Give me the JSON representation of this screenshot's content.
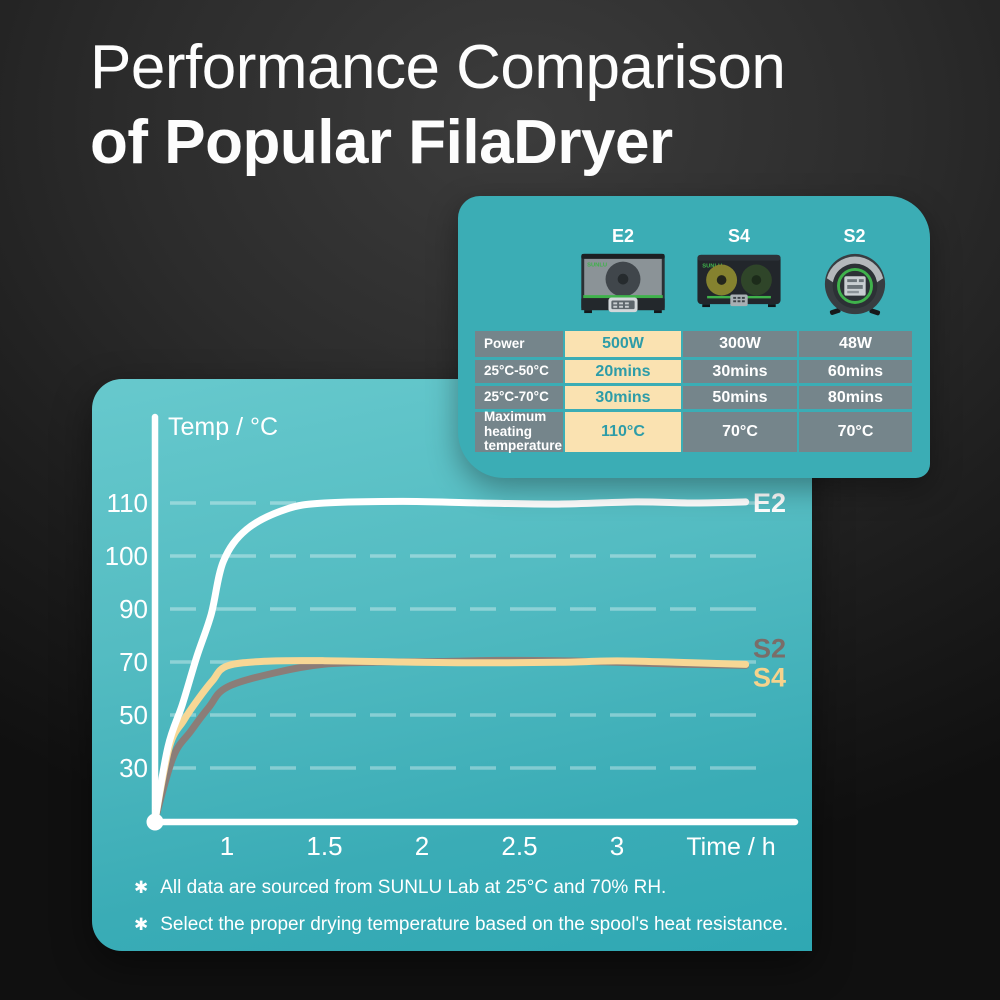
{
  "header": {
    "title_line1": "Performance Comparison",
    "title_line2": "of Popular FilaDryer"
  },
  "brand": "SUNLU",
  "comparison": {
    "products": [
      {
        "name": "E2"
      },
      {
        "name": "S4"
      },
      {
        "name": "S2"
      }
    ],
    "highlight_column": "E2",
    "rows": [
      {
        "label": "Power",
        "values": [
          "500W",
          "300W",
          "48W"
        ]
      },
      {
        "label": "25°C-50°C",
        "values": [
          "20mins",
          "30mins",
          "60mins"
        ]
      },
      {
        "label": "25°C-70°C",
        "values": [
          "30mins",
          "50mins",
          "80mins"
        ]
      },
      {
        "label": "Maximum heating temperature",
        "values": [
          "110°C",
          "70°C",
          "70°C"
        ]
      }
    ]
  },
  "chart_data": {
    "type": "line",
    "ylabel": "Temp / °C",
    "xlabel": "Time / h",
    "y_ticks": [
      110,
      100,
      90,
      70,
      50,
      30
    ],
    "x_ticks": [
      "1",
      "1.5",
      "2",
      "2.5",
      "3"
    ],
    "grid": "dashed-horizontal",
    "legend_position": "line-end-labels",
    "axis_color": "#ffffff",
    "grid_color": "rgba(255,255,255,0.35)",
    "series": [
      {
        "name": "E2",
        "color": "#ffffff",
        "label_color": "#ffffff",
        "points": [
          [
            0,
            25
          ],
          [
            0.18,
            38
          ],
          [
            0.38,
            54
          ],
          [
            0.58,
            72
          ],
          [
            0.78,
            88
          ],
          [
            0.95,
            99
          ],
          [
            1.1,
            105
          ],
          [
            1.3,
            108.8
          ],
          [
            1.5,
            110
          ],
          [
            1.9,
            110.3
          ],
          [
            2.3,
            110
          ],
          [
            2.7,
            109.8
          ],
          [
            3.1,
            110.2
          ],
          [
            3.4,
            110
          ],
          [
            3.66,
            110.2
          ]
        ]
      },
      {
        "name": "S4",
        "color": "#f7d795",
        "label_color": "#f6d38c",
        "points": [
          [
            0,
            25
          ],
          [
            0.2,
            38
          ],
          [
            0.4,
            48
          ],
          [
            0.6,
            56
          ],
          [
            0.8,
            63
          ],
          [
            1.0,
            68.5
          ],
          [
            1.2,
            70.3
          ],
          [
            1.5,
            70.5
          ],
          [
            1.9,
            70
          ],
          [
            2.3,
            69.7
          ],
          [
            2.7,
            69.9
          ],
          [
            3.0,
            70.4
          ],
          [
            3.3,
            69.9
          ],
          [
            3.66,
            69.1
          ]
        ]
      },
      {
        "name": "S2",
        "color": "#8b7d78",
        "label_color": "#7a6d69",
        "points": [
          [
            0,
            25
          ],
          [
            0.25,
            34
          ],
          [
            0.5,
            44
          ],
          [
            0.75,
            53
          ],
          [
            1.0,
            60.5
          ],
          [
            1.25,
            66
          ],
          [
            1.5,
            69.2
          ],
          [
            1.8,
            70
          ],
          [
            2.1,
            70.2
          ],
          [
            2.4,
            70.6
          ],
          [
            2.7,
            70.5
          ],
          [
            3.0,
            69.9
          ],
          [
            3.3,
            69.2
          ],
          [
            3.66,
            68.7
          ]
        ]
      }
    ]
  },
  "footnotes": [
    "All data are sourced from SUNLU Lab at 25°C and 70% RH.",
    "Select the proper drying temperature based on the spool's heat resistance."
  ],
  "footnote_marker": "✱"
}
